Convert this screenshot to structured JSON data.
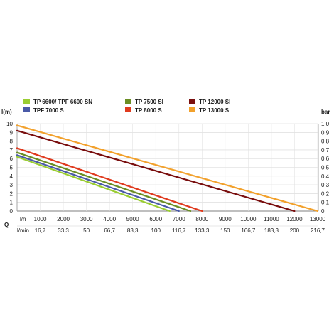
{
  "chart_data": {
    "type": "line",
    "left_axis": {
      "label": "l(m)",
      "ticks": [
        0,
        1,
        2,
        3,
        4,
        5,
        6,
        7,
        8,
        9,
        10
      ],
      "range": [
        0,
        10
      ]
    },
    "right_axis": {
      "label": "bar",
      "ticks": [
        "0",
        "0,1",
        "0,2",
        "0,3",
        "0,4",
        "0,5",
        "0,6",
        "0,7",
        "0,8",
        "0,9",
        "1,0"
      ]
    },
    "x_axis_lh": {
      "label": "l/h",
      "ticks": [
        1000,
        2000,
        3000,
        4000,
        5000,
        6000,
        7000,
        8000,
        9000,
        10000,
        11000,
        12000,
        13000
      ],
      "range": [
        0,
        13000
      ]
    },
    "x_axis_lmin": {
      "label": "l/min",
      "ticks": [
        "16,7",
        "33,3",
        "50",
        "66,7",
        "83,3",
        "100",
        "116,7",
        "133,3",
        "150",
        "166,7",
        "183,3",
        "200",
        "216,7"
      ]
    },
    "q_label": "Q",
    "series": [
      {
        "name": "TP 6600/ TPF 6600 SN",
        "color": "#9acd32",
        "x": [
          0,
          6600
        ],
        "y": [
          6.2,
          0
        ]
      },
      {
        "name": "TPF 7000 S",
        "color": "#4a5aa8",
        "x": [
          0,
          7000
        ],
        "y": [
          6.4,
          0
        ]
      },
      {
        "name": "TP 7500 SI",
        "color": "#6b8e23",
        "x": [
          0,
          7500
        ],
        "y": [
          6.7,
          0
        ]
      },
      {
        "name": "TP 8000 S",
        "color": "#e03a1e",
        "x": [
          0,
          8000
        ],
        "y": [
          7.2,
          0
        ]
      },
      {
        "name": "TP 12000 SI",
        "color": "#7a0f0f",
        "x": [
          0,
          12000
        ],
        "y": [
          9.2,
          0
        ]
      },
      {
        "name": "TP 13000 S",
        "color": "#f2a12c",
        "x": [
          0,
          13000
        ],
        "y": [
          9.8,
          0
        ]
      }
    ],
    "grid": true
  }
}
